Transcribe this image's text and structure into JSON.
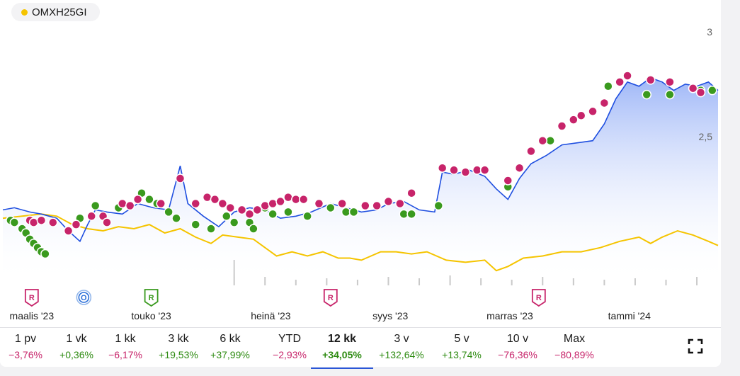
{
  "legend": {
    "label": "OMXH25GI",
    "color": "#f5c400"
  },
  "colors": {
    "price": "#1f4fe0",
    "compare": "#f5c400",
    "buy": "#3a9a1e",
    "sell": "#c7246a",
    "volume": "#c9c9c9"
  },
  "chart_data": {
    "type": "line",
    "y_ticks": [
      "3",
      "2,5"
    ],
    "y_tick_values": [
      3,
      2.5
    ],
    "ylim": [
      1.8,
      3.05
    ],
    "x_ticks": [
      "maalis '23",
      "touko '23",
      "heinä '23",
      "syys '23",
      "marras '23",
      "tammi '24"
    ],
    "x_tick_index": [
      15,
      77,
      139,
      201,
      263,
      325
    ],
    "n_days": 372,
    "price": [
      [
        0,
        2.15
      ],
      [
        6,
        2.16
      ],
      [
        14,
        2.14
      ],
      [
        20,
        2.13
      ],
      [
        28,
        2.11
      ],
      [
        34,
        2.05
      ],
      [
        40,
        2.0
      ],
      [
        44,
        2.08
      ],
      [
        48,
        2.15
      ],
      [
        54,
        2.14
      ],
      [
        62,
        2.13
      ],
      [
        70,
        2.18
      ],
      [
        78,
        2.16
      ],
      [
        86,
        2.15
      ],
      [
        92,
        2.36
      ],
      [
        96,
        2.18
      ],
      [
        104,
        2.12
      ],
      [
        112,
        2.07
      ],
      [
        120,
        2.14
      ],
      [
        128,
        2.16
      ],
      [
        136,
        2.15
      ],
      [
        144,
        2.11
      ],
      [
        152,
        2.12
      ],
      [
        160,
        2.14
      ],
      [
        170,
        2.18
      ],
      [
        178,
        2.16
      ],
      [
        186,
        2.14
      ],
      [
        194,
        2.15
      ],
      [
        200,
        2.18
      ],
      [
        208,
        2.19
      ],
      [
        216,
        2.15
      ],
      [
        224,
        2.14
      ],
      [
        228,
        2.33
      ],
      [
        234,
        2.32
      ],
      [
        242,
        2.34
      ],
      [
        250,
        2.31
      ],
      [
        256,
        2.25
      ],
      [
        262,
        2.2
      ],
      [
        268,
        2.3
      ],
      [
        274,
        2.37
      ],
      [
        282,
        2.41
      ],
      [
        290,
        2.46
      ],
      [
        298,
        2.47
      ],
      [
        306,
        2.48
      ],
      [
        312,
        2.56
      ],
      [
        318,
        2.68
      ],
      [
        324,
        2.76
      ],
      [
        330,
        2.74
      ],
      [
        336,
        2.78
      ],
      [
        342,
        2.76
      ],
      [
        348,
        2.72
      ],
      [
        354,
        2.75
      ],
      [
        360,
        2.74
      ],
      [
        366,
        2.76
      ],
      [
        371,
        2.72
      ]
    ],
    "compare": [
      [
        0,
        2.11
      ],
      [
        10,
        2.12
      ],
      [
        20,
        2.13
      ],
      [
        28,
        2.12
      ],
      [
        36,
        2.08
      ],
      [
        44,
        2.06
      ],
      [
        52,
        2.05
      ],
      [
        60,
        2.07
      ],
      [
        68,
        2.06
      ],
      [
        76,
        2.08
      ],
      [
        84,
        2.04
      ],
      [
        92,
        2.06
      ],
      [
        100,
        2.02
      ],
      [
        108,
        1.99
      ],
      [
        114,
        2.03
      ],
      [
        122,
        2.02
      ],
      [
        130,
        2.01
      ],
      [
        136,
        1.97
      ],
      [
        142,
        1.93
      ],
      [
        150,
        1.95
      ],
      [
        158,
        1.93
      ],
      [
        166,
        1.95
      ],
      [
        174,
        1.92
      ],
      [
        180,
        1.92
      ],
      [
        186,
        1.91
      ],
      [
        196,
        1.95
      ],
      [
        204,
        1.95
      ],
      [
        212,
        1.94
      ],
      [
        220,
        1.95
      ],
      [
        230,
        1.91
      ],
      [
        240,
        1.9
      ],
      [
        250,
        1.91
      ],
      [
        256,
        1.86
      ],
      [
        262,
        1.88
      ],
      [
        270,
        1.92
      ],
      [
        280,
        1.93
      ],
      [
        290,
        1.95
      ],
      [
        300,
        1.95
      ],
      [
        310,
        1.97
      ],
      [
        320,
        2.0
      ],
      [
        330,
        2.02
      ],
      [
        336,
        1.99
      ],
      [
        342,
        2.02
      ],
      [
        350,
        2.05
      ],
      [
        358,
        2.03
      ],
      [
        366,
        2.0
      ],
      [
        371,
        1.98
      ]
    ],
    "buy_markers": [
      [
        4,
        2.1
      ],
      [
        6,
        2.09
      ],
      [
        10,
        2.06
      ],
      [
        12,
        2.04
      ],
      [
        14,
        2.01
      ],
      [
        16,
        1.99
      ],
      [
        18,
        1.97
      ],
      [
        20,
        1.95
      ],
      [
        22,
        1.94
      ],
      [
        40,
        2.11
      ],
      [
        48,
        2.17
      ],
      [
        60,
        2.16
      ],
      [
        72,
        2.23
      ],
      [
        76,
        2.2
      ],
      [
        80,
        2.18
      ],
      [
        86,
        2.14
      ],
      [
        90,
        2.11
      ],
      [
        100,
        2.08
      ],
      [
        108,
        2.06
      ],
      [
        116,
        2.12
      ],
      [
        120,
        2.09
      ],
      [
        128,
        2.09
      ],
      [
        130,
        2.06
      ],
      [
        136,
        2.16
      ],
      [
        140,
        2.13
      ],
      [
        148,
        2.14
      ],
      [
        158,
        2.12
      ],
      [
        170,
        2.16
      ],
      [
        178,
        2.14
      ],
      [
        182,
        2.14
      ],
      [
        208,
        2.13
      ],
      [
        212,
        2.13
      ],
      [
        226,
        2.17
      ],
      [
        262,
        2.26
      ],
      [
        284,
        2.48
      ],
      [
        314,
        2.74
      ],
      [
        334,
        2.7
      ],
      [
        346,
        2.7
      ],
      [
        358,
        2.73
      ],
      [
        362,
        2.72
      ],
      [
        368,
        2.72
      ]
    ],
    "sell_markers": [
      [
        14,
        2.1
      ],
      [
        16,
        2.09
      ],
      [
        20,
        2.1
      ],
      [
        26,
        2.09
      ],
      [
        34,
        2.05
      ],
      [
        38,
        2.08
      ],
      [
        46,
        2.12
      ],
      [
        52,
        2.12
      ],
      [
        54,
        2.09
      ],
      [
        62,
        2.18
      ],
      [
        66,
        2.17
      ],
      [
        70,
        2.2
      ],
      [
        82,
        2.18
      ],
      [
        92,
        2.3
      ],
      [
        100,
        2.18
      ],
      [
        106,
        2.21
      ],
      [
        110,
        2.2
      ],
      [
        114,
        2.18
      ],
      [
        118,
        2.16
      ],
      [
        124,
        2.15
      ],
      [
        128,
        2.13
      ],
      [
        132,
        2.15
      ],
      [
        136,
        2.17
      ],
      [
        140,
        2.18
      ],
      [
        144,
        2.19
      ],
      [
        148,
        2.21
      ],
      [
        152,
        2.2
      ],
      [
        156,
        2.2
      ],
      [
        164,
        2.18
      ],
      [
        176,
        2.18
      ],
      [
        188,
        2.17
      ],
      [
        194,
        2.17
      ],
      [
        200,
        2.19
      ],
      [
        206,
        2.18
      ],
      [
        212,
        2.23
      ],
      [
        228,
        2.35
      ],
      [
        234,
        2.34
      ],
      [
        240,
        2.33
      ],
      [
        246,
        2.34
      ],
      [
        250,
        2.34
      ],
      [
        262,
        2.29
      ],
      [
        268,
        2.35
      ],
      [
        274,
        2.43
      ],
      [
        280,
        2.48
      ],
      [
        290,
        2.55
      ],
      [
        296,
        2.58
      ],
      [
        300,
        2.6
      ],
      [
        306,
        2.62
      ],
      [
        312,
        2.66
      ],
      [
        320,
        2.76
      ],
      [
        324,
        2.79
      ],
      [
        336,
        2.77
      ],
      [
        346,
        2.76
      ],
      [
        358,
        2.73
      ],
      [
        362,
        2.71
      ]
    ],
    "volume": [
      [
        120,
        0.9
      ],
      [
        136,
        0.3
      ],
      [
        152,
        0.2
      ],
      [
        168,
        0.25
      ],
      [
        184,
        0.2
      ],
      [
        200,
        0.3
      ],
      [
        216,
        0.25
      ],
      [
        232,
        0.35
      ],
      [
        248,
        0.25
      ],
      [
        264,
        0.2
      ],
      [
        280,
        0.3
      ],
      [
        296,
        0.25
      ],
      [
        312,
        0.2
      ],
      [
        328,
        0.25
      ],
      [
        344,
        0.2
      ],
      [
        360,
        0.3
      ]
    ],
    "events": [
      {
        "label": "R",
        "kind": "R",
        "color": "#c7246a",
        "day": 15,
        "shape": "shield"
      },
      {
        "label": "O",
        "kind": "O",
        "color": "#2a6ed8",
        "day": 42,
        "shape": "circle"
      },
      {
        "label": "R",
        "kind": "R",
        "color": "#3a9a1e",
        "day": 77,
        "shape": "shield"
      },
      {
        "label": "R",
        "kind": "R",
        "color": "#c7246a",
        "day": 170,
        "shape": "shield"
      },
      {
        "label": "R",
        "kind": "R",
        "color": "#c7246a",
        "day": 278,
        "shape": "shield"
      }
    ]
  },
  "periods": [
    {
      "label": "1 pv",
      "change": "−3,76%",
      "trend": "down"
    },
    {
      "label": "1 vk",
      "change": "+0,36%",
      "trend": "up"
    },
    {
      "label": "1 kk",
      "change": "−6,17%",
      "trend": "down"
    },
    {
      "label": "3 kk",
      "change": "+19,53%",
      "trend": "up"
    },
    {
      "label": "6 kk",
      "change": "+37,99%",
      "trend": "up"
    },
    {
      "label": "YTD",
      "change": "−2,93%",
      "trend": "down"
    },
    {
      "label": "12 kk",
      "change": "+34,05%",
      "trend": "up",
      "active": true
    },
    {
      "label": "3 v",
      "change": "+132,64%",
      "trend": "up"
    },
    {
      "label": "5 v",
      "change": "+13,74%",
      "trend": "up"
    },
    {
      "label": "10 v",
      "change": "−76,36%",
      "trend": "down"
    },
    {
      "label": "Max",
      "change": "−80,89%",
      "trend": "down"
    }
  ],
  "trend_colors": {
    "up": "#2e8b12",
    "down": "#c7246a"
  }
}
